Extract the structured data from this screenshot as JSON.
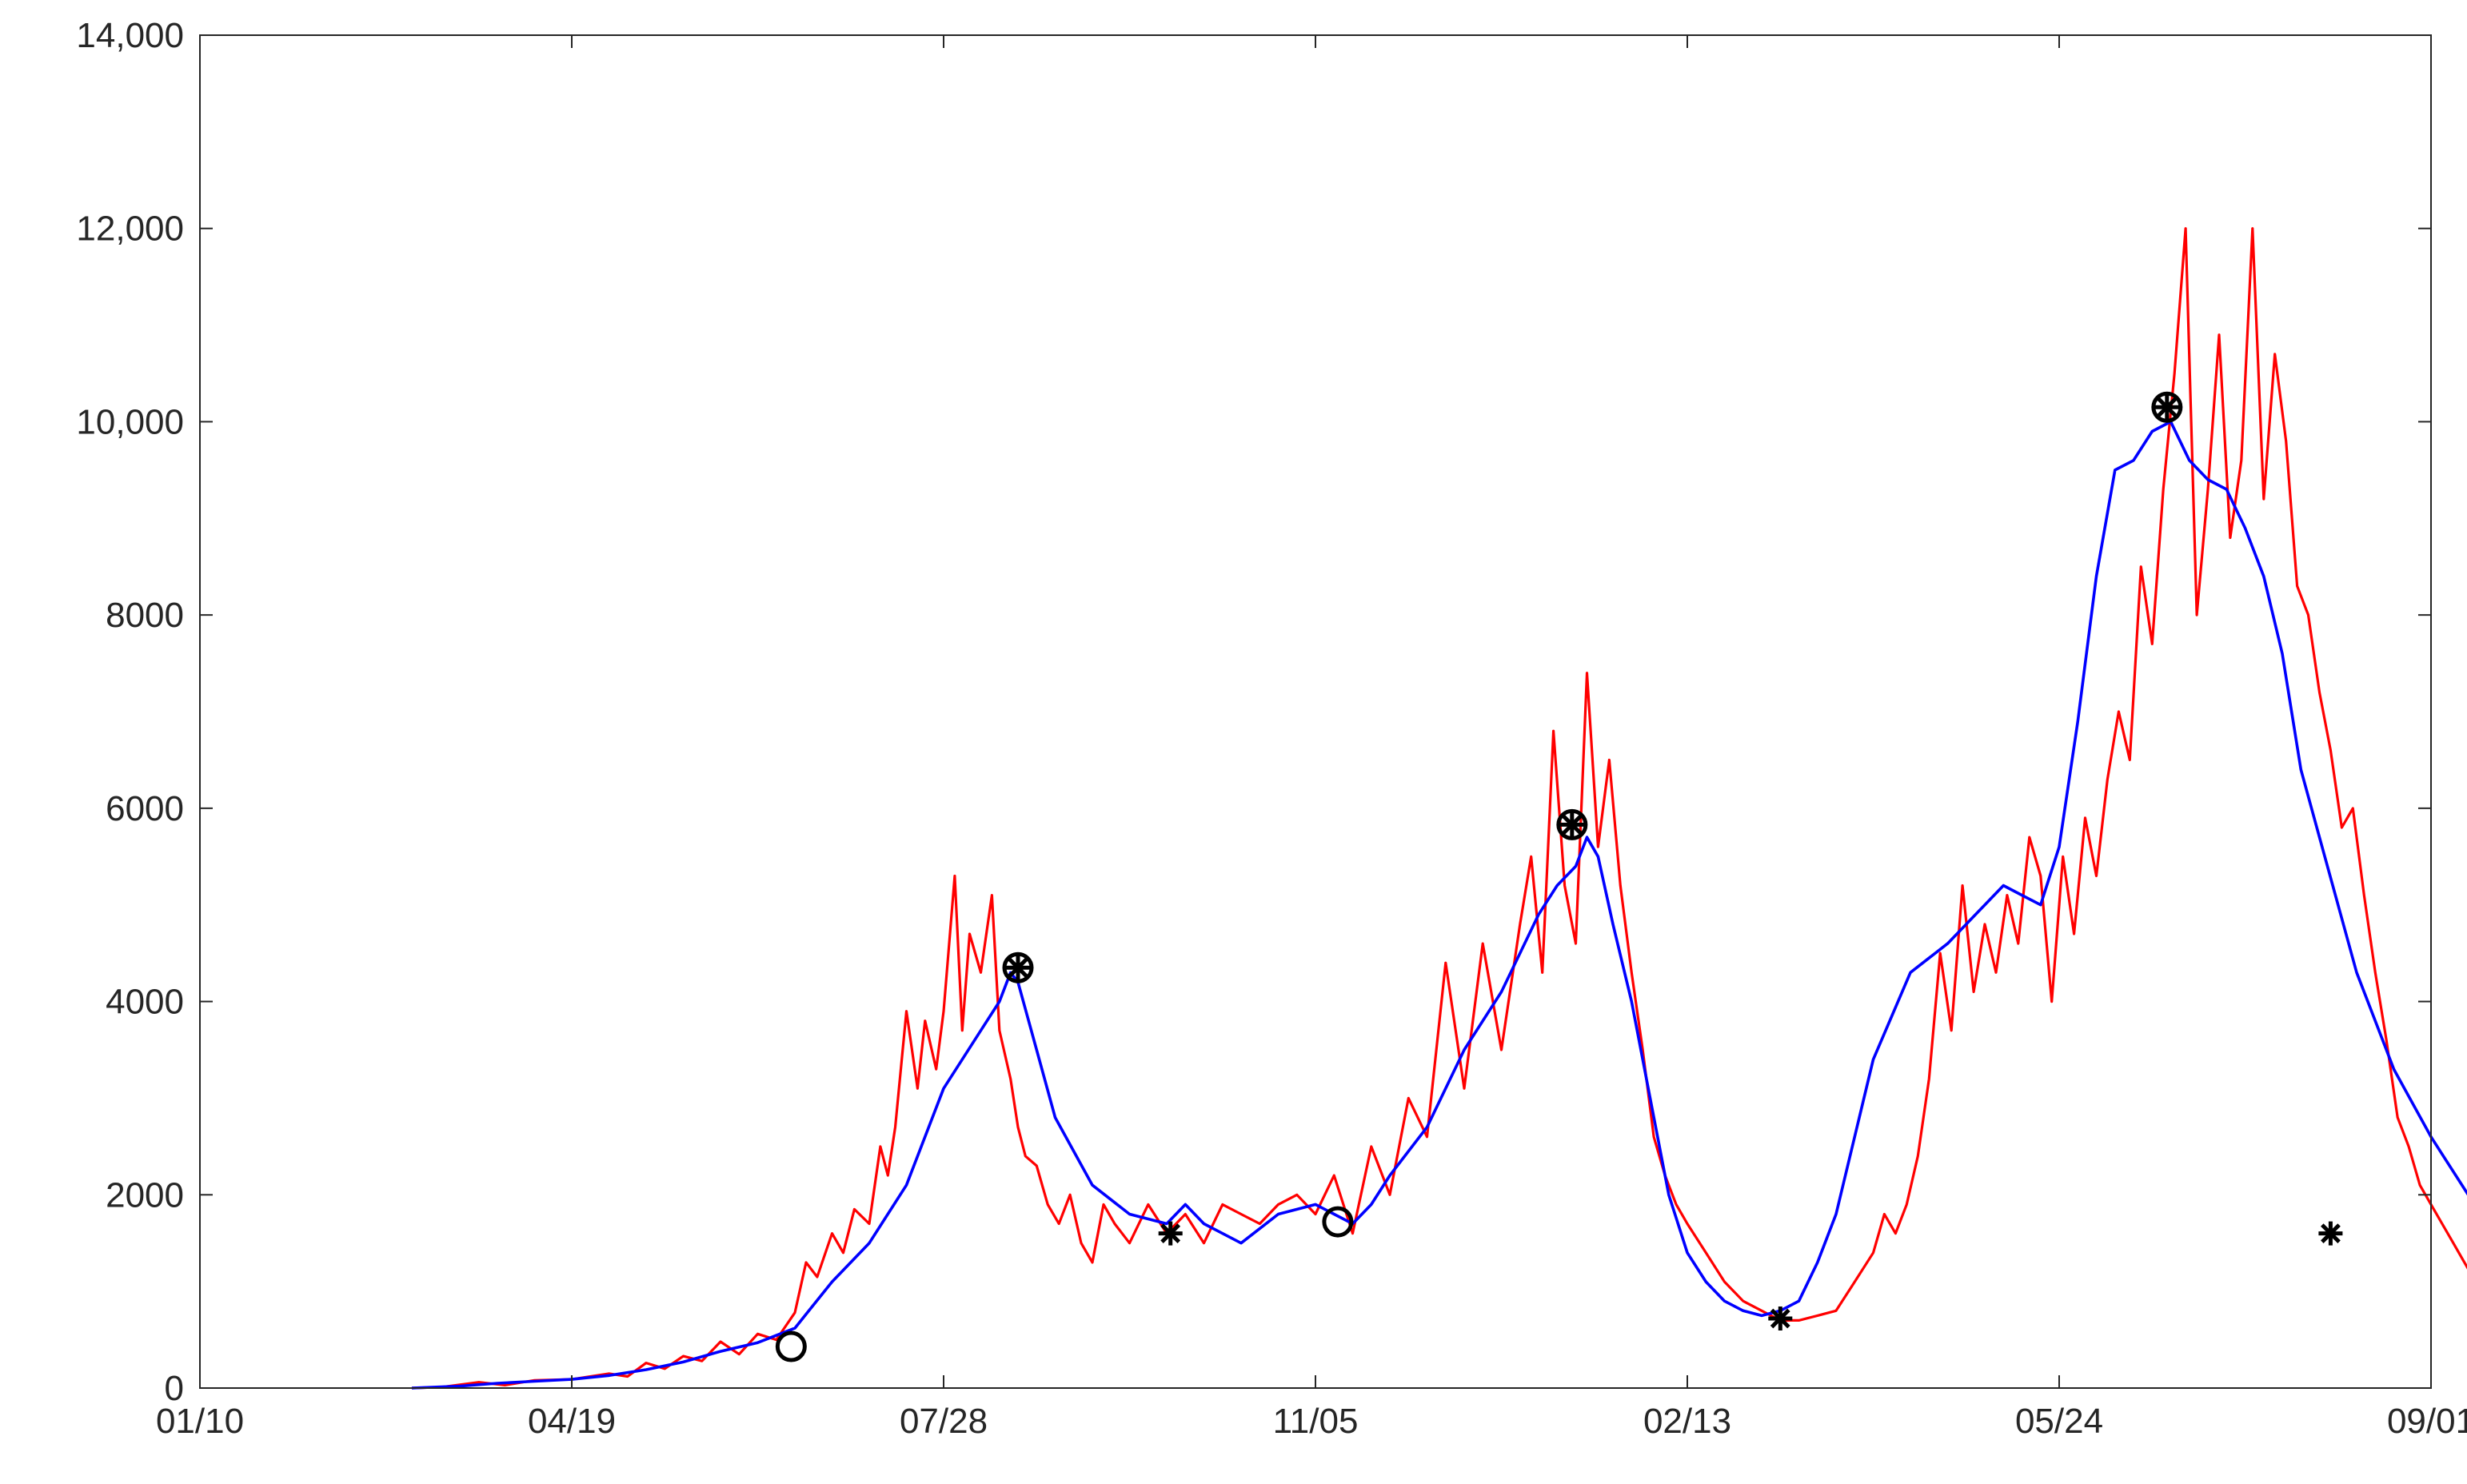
{
  "chart_data": {
    "type": "line",
    "title": "",
    "xlabel": "",
    "ylabel": "",
    "x_axis": {
      "ticks": [
        "01/10",
        "04/19",
        "07/28",
        "11/05",
        "02/13",
        "05/24",
        "09/01"
      ],
      "tick_day_index": [
        0,
        100,
        200,
        300,
        400,
        500,
        600
      ]
    },
    "y_axis": {
      "ylim": [
        0,
        14000
      ],
      "ticks": [
        0,
        2000,
        4000,
        6000,
        8000,
        10000,
        12000,
        14000
      ],
      "tick_labels": [
        "0",
        "2000",
        "4000",
        "6000",
        "8000",
        "10,000",
        "12,000",
        "14,000"
      ]
    },
    "grid": false,
    "legend": "none",
    "series": [
      {
        "key": "daily",
        "color": "#ff0000",
        "x_day_index": [
          57,
          65,
          75,
          82,
          90,
          100,
          110,
          115,
          120,
          125,
          130,
          135,
          140,
          145,
          150,
          155,
          160,
          163,
          166,
          170,
          173,
          176,
          180,
          183,
          185,
          187,
          190,
          193,
          195,
          198,
          200,
          203,
          205,
          207,
          210,
          213,
          215,
          218,
          220,
          222,
          225,
          228,
          231,
          234,
          237,
          240,
          243,
          246,
          250,
          255,
          260,
          265,
          270,
          275,
          280,
          285,
          290,
          295,
          300,
          305,
          310,
          315,
          320,
          325,
          330,
          335,
          340,
          345,
          350,
          355,
          358,
          361,
          364,
          367,
          370,
          373,
          376,
          379,
          382,
          385,
          388,
          391,
          394,
          397,
          400,
          405,
          410,
          415,
          420,
          425,
          430,
          435,
          440,
          445,
          450,
          453,
          456,
          459,
          462,
          465,
          468,
          471,
          474,
          477,
          480,
          483,
          486,
          489,
          492,
          495,
          498,
          501,
          504,
          507,
          510,
          513,
          516,
          519,
          522,
          525,
          528,
          531,
          534,
          537,
          540,
          543,
          546,
          549,
          552,
          555,
          558,
          561,
          564,
          567,
          570,
          573,
          576,
          579,
          582,
          585,
          588,
          591,
          594,
          597,
          600,
          603,
          606,
          609,
          612,
          615,
          618,
          621,
          624,
          627,
          630,
          633,
          635
        ],
        "y": [
          0,
          10,
          60,
          30,
          80,
          90,
          150,
          120,
          260,
          200,
          330,
          280,
          480,
          350,
          560,
          500,
          780,
          1300,
          1150,
          1600,
          1400,
          1850,
          1700,
          2500,
          2200,
          2700,
          3900,
          3100,
          3800,
          3300,
          3900,
          5300,
          3700,
          4700,
          4300,
          5100,
          3700,
          3200,
          2700,
          2400,
          2300,
          1900,
          1700,
          2000,
          1500,
          1300,
          1900,
          1700,
          1500,
          1900,
          1600,
          1800,
          1500,
          1900,
          1800,
          1700,
          1900,
          2000,
          1800,
          2200,
          1600,
          2500,
          2000,
          3000,
          2600,
          4400,
          3100,
          4600,
          3500,
          4800,
          5500,
          4300,
          6800,
          5200,
          4600,
          7400,
          5600,
          6500,
          5200,
          4300,
          3500,
          2600,
          2200,
          1900,
          1700,
          1400,
          1100,
          900,
          800,
          700,
          700,
          750,
          800,
          1100,
          1400,
          1800,
          1600,
          1900,
          2400,
          3200,
          4500,
          3700,
          5200,
          4100,
          4800,
          4300,
          5100,
          4600,
          5700,
          5300,
          4000,
          5500,
          4700,
          5900,
          5300,
          6300,
          7000,
          6500,
          8500,
          7700,
          9300,
          10500,
          12000,
          8000,
          9300,
          10900,
          8800,
          9600,
          12000,
          9200,
          10700,
          9800,
          8300,
          8000,
          7200,
          6600,
          5800,
          6000,
          5100,
          4300,
          3600,
          2800,
          2500,
          2100,
          1900,
          1700,
          1500,
          1300,
          1100,
          1100,
          1100,
          1100,
          1100,
          1100,
          1100
        ],
        "y_note_placeholder": ""
      },
      {
        "key": "smoothed",
        "color": "#0000ff",
        "x_day_index": [
          57,
          70,
          80,
          90,
          100,
          110,
          120,
          130,
          140,
          150,
          160,
          170,
          180,
          190,
          200,
          210,
          215,
          218,
          220,
          225,
          230,
          240,
          250,
          260,
          265,
          270,
          280,
          290,
          300,
          305,
          310,
          315,
          320,
          330,
          340,
          350,
          355,
          360,
          365,
          370,
          373,
          376,
          380,
          385,
          390,
          395,
          400,
          405,
          410,
          415,
          420,
          425,
          430,
          435,
          440,
          450,
          460,
          470,
          480,
          485,
          490,
          495,
          500,
          505,
          510,
          515,
          520,
          525,
          530,
          535,
          540,
          545,
          550,
          555,
          560,
          565,
          570,
          580,
          590,
          600,
          610,
          620,
          630,
          635
        ],
        "y": [
          0,
          20,
          50,
          70,
          90,
          130,
          190,
          270,
          380,
          470,
          620,
          1100,
          1500,
          2100,
          3100,
          3700,
          4000,
          4300,
          4200,
          3500,
          2800,
          2100,
          1800,
          1700,
          1900,
          1700,
          1500,
          1800,
          1900,
          1800,
          1700,
          1900,
          2200,
          2700,
          3500,
          4100,
          4500,
          4900,
          5200,
          5400,
          5700,
          5500,
          4800,
          4000,
          3000,
          2000,
          1400,
          1100,
          900,
          800,
          750,
          800,
          900,
          1300,
          1800,
          3400,
          4300,
          4600,
          5000,
          5200,
          5100,
          5000,
          5600,
          6900,
          8400,
          9500,
          9600,
          9900,
          10000,
          9600,
          9400,
          9300,
          8900,
          8400,
          7600,
          6400,
          5700,
          4300,
          3300,
          2600,
          2000,
          1700,
          1600,
          1550
        ],
        "y_note_placeholder": ""
      }
    ],
    "markers": [
      {
        "kind": "circle",
        "day_index": 159,
        "y": 430
      },
      {
        "kind": "circle-star",
        "day_index": 220,
        "y": 4350
      },
      {
        "kind": "star",
        "day_index": 261,
        "y": 1600
      },
      {
        "kind": "circle",
        "day_index": 306,
        "y": 1720
      },
      {
        "kind": "circle-star",
        "day_index": 369,
        "y": 5830
      },
      {
        "kind": "star",
        "day_index": 425,
        "y": 720
      },
      {
        "kind": "circle-star",
        "day_index": 529,
        "y": 10150
      },
      {
        "kind": "star",
        "day_index": 573,
        "y": 1600
      }
    ]
  }
}
